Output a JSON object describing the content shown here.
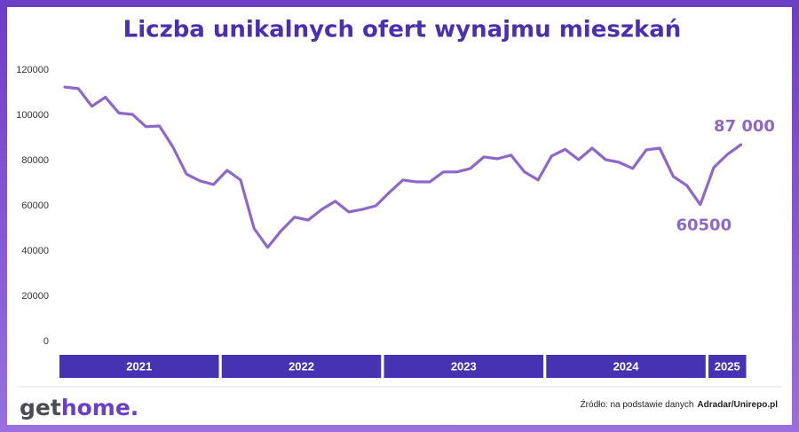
{
  "chart_data": {
    "type": "line",
    "title": "Liczba unikalnych ofert wynajmu mieszkań",
    "color": "#8e68c9",
    "ylim": [
      0,
      120000
    ],
    "yticks": [
      0,
      20000,
      40000,
      60000,
      80000,
      100000,
      120000
    ],
    "groups": [
      {
        "label": "2021",
        "values": [
          112500,
          111800,
          104000,
          108000,
          101000,
          100400,
          95000,
          95300,
          86000,
          74000,
          71000,
          69400
        ]
      },
      {
        "label": "2022",
        "values": [
          75700,
          71400,
          50000,
          41600,
          49000,
          55000,
          53700,
          58400,
          62000,
          57300,
          58400,
          60000
        ]
      },
      {
        "label": "2023",
        "values": [
          65900,
          71400,
          70600,
          70600,
          75000,
          75000,
          76500,
          81600,
          80800,
          82400,
          75000,
          71400
        ]
      },
      {
        "label": "2024",
        "values": [
          82000,
          85000,
          80400,
          85500,
          80400,
          79200,
          76500,
          84700,
          85500,
          73000,
          69000,
          60500
        ]
      },
      {
        "label": "2025",
        "values": [
          76900,
          82700,
          87000
        ]
      }
    ],
    "value_labels": [
      {
        "group": 3,
        "index": 11,
        "label": "60500"
      },
      {
        "group": 4,
        "index": 2,
        "label": "87 000"
      }
    ],
    "source": {
      "prefix": "Źródło: na podstawie danych",
      "name": "Adradar/Unirepo.pl"
    },
    "logo": {
      "first": "get",
      "second": "home."
    }
  }
}
